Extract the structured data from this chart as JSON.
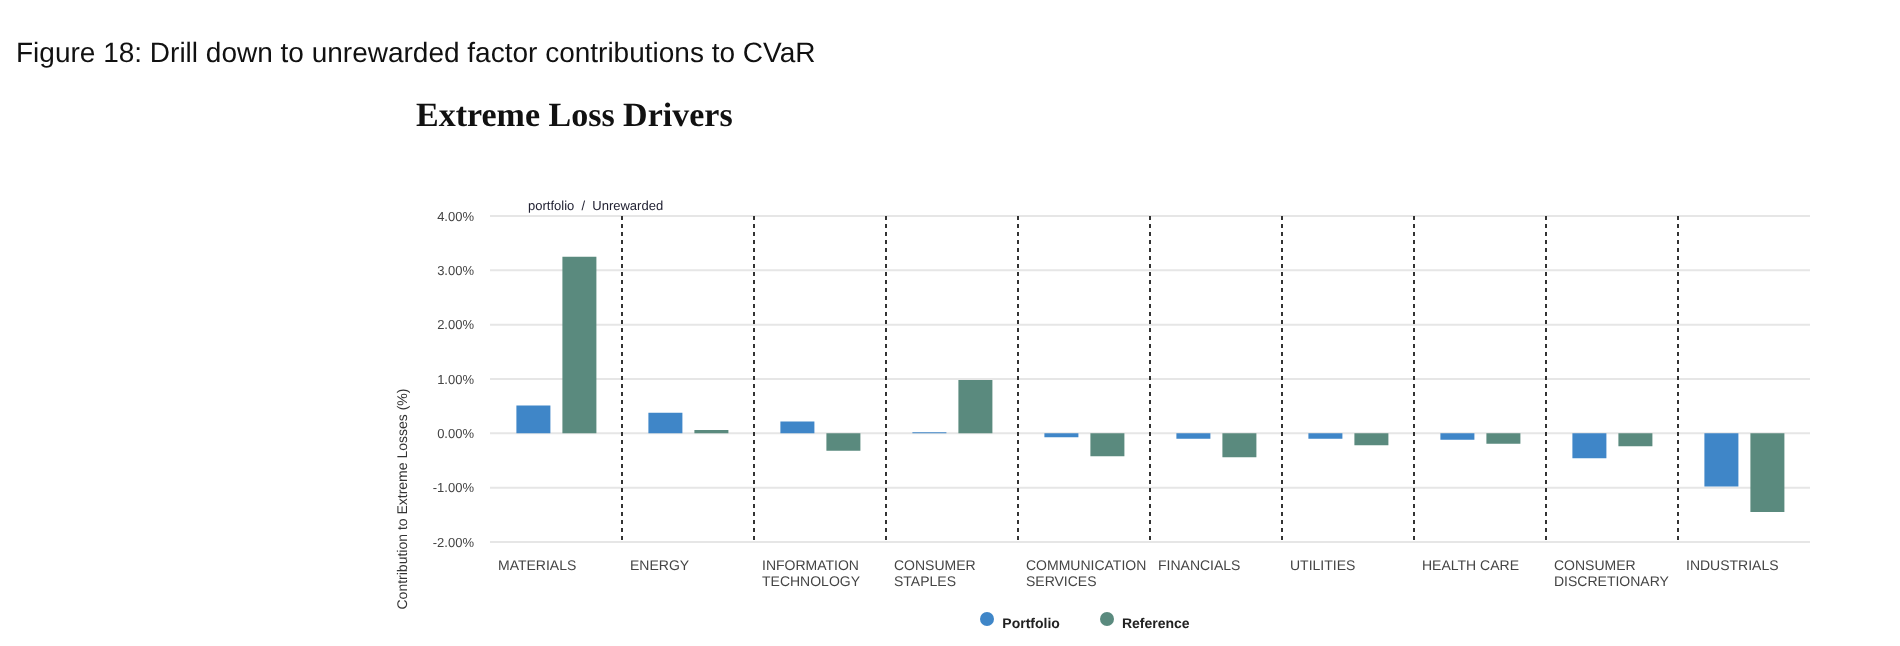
{
  "chart_data": {
    "type": "bar",
    "title": "Figure 18: Drill down to unrewarded factor contributions to CVaR",
    "subtitle": "Extreme Loss Drivers",
    "ylabel": "Contribution to Extreme Losses (%)",
    "annotations": [
      "portfolio  /  Unrewarded"
    ],
    "categories": [
      "MATERIALS",
      "ENERGY",
      "INFORMATION TECHNOLOGY",
      "CONSUMER STAPLES",
      "COMMUNICATION SERVICES",
      "FINANCIALS",
      "UTILITIES",
      "HEALTH CARE",
      "CONSUMER DISCRETIONARY",
      "INDUSTRIALS"
    ],
    "series": [
      {
        "name": "Portfolio",
        "color": "#3f86c8",
        "values": [
          0.51,
          0.38,
          0.22,
          0.02,
          -0.07,
          -0.1,
          -0.1,
          -0.12,
          -0.46,
          -0.98
        ]
      },
      {
        "name": "Reference",
        "color": "#5a8a7e",
        "values": [
          3.25,
          0.06,
          -0.32,
          0.98,
          -0.42,
          -0.44,
          -0.22,
          -0.19,
          -0.24,
          -1.45
        ]
      }
    ],
    "ylim": [
      -2,
      4
    ],
    "yticks": [
      {
        "value": -2,
        "label": "-2.00%"
      },
      {
        "value": -1,
        "label": "-1.00%"
      },
      {
        "value": 0,
        "label": "0.00%"
      },
      {
        "value": 1,
        "label": "1.00%"
      },
      {
        "value": 2,
        "label": "2.00%"
      },
      {
        "value": 3,
        "label": "3.00%"
      },
      {
        "value": 4,
        "label": "4.00%"
      }
    ],
    "grid": true,
    "legend": "bottom"
  }
}
